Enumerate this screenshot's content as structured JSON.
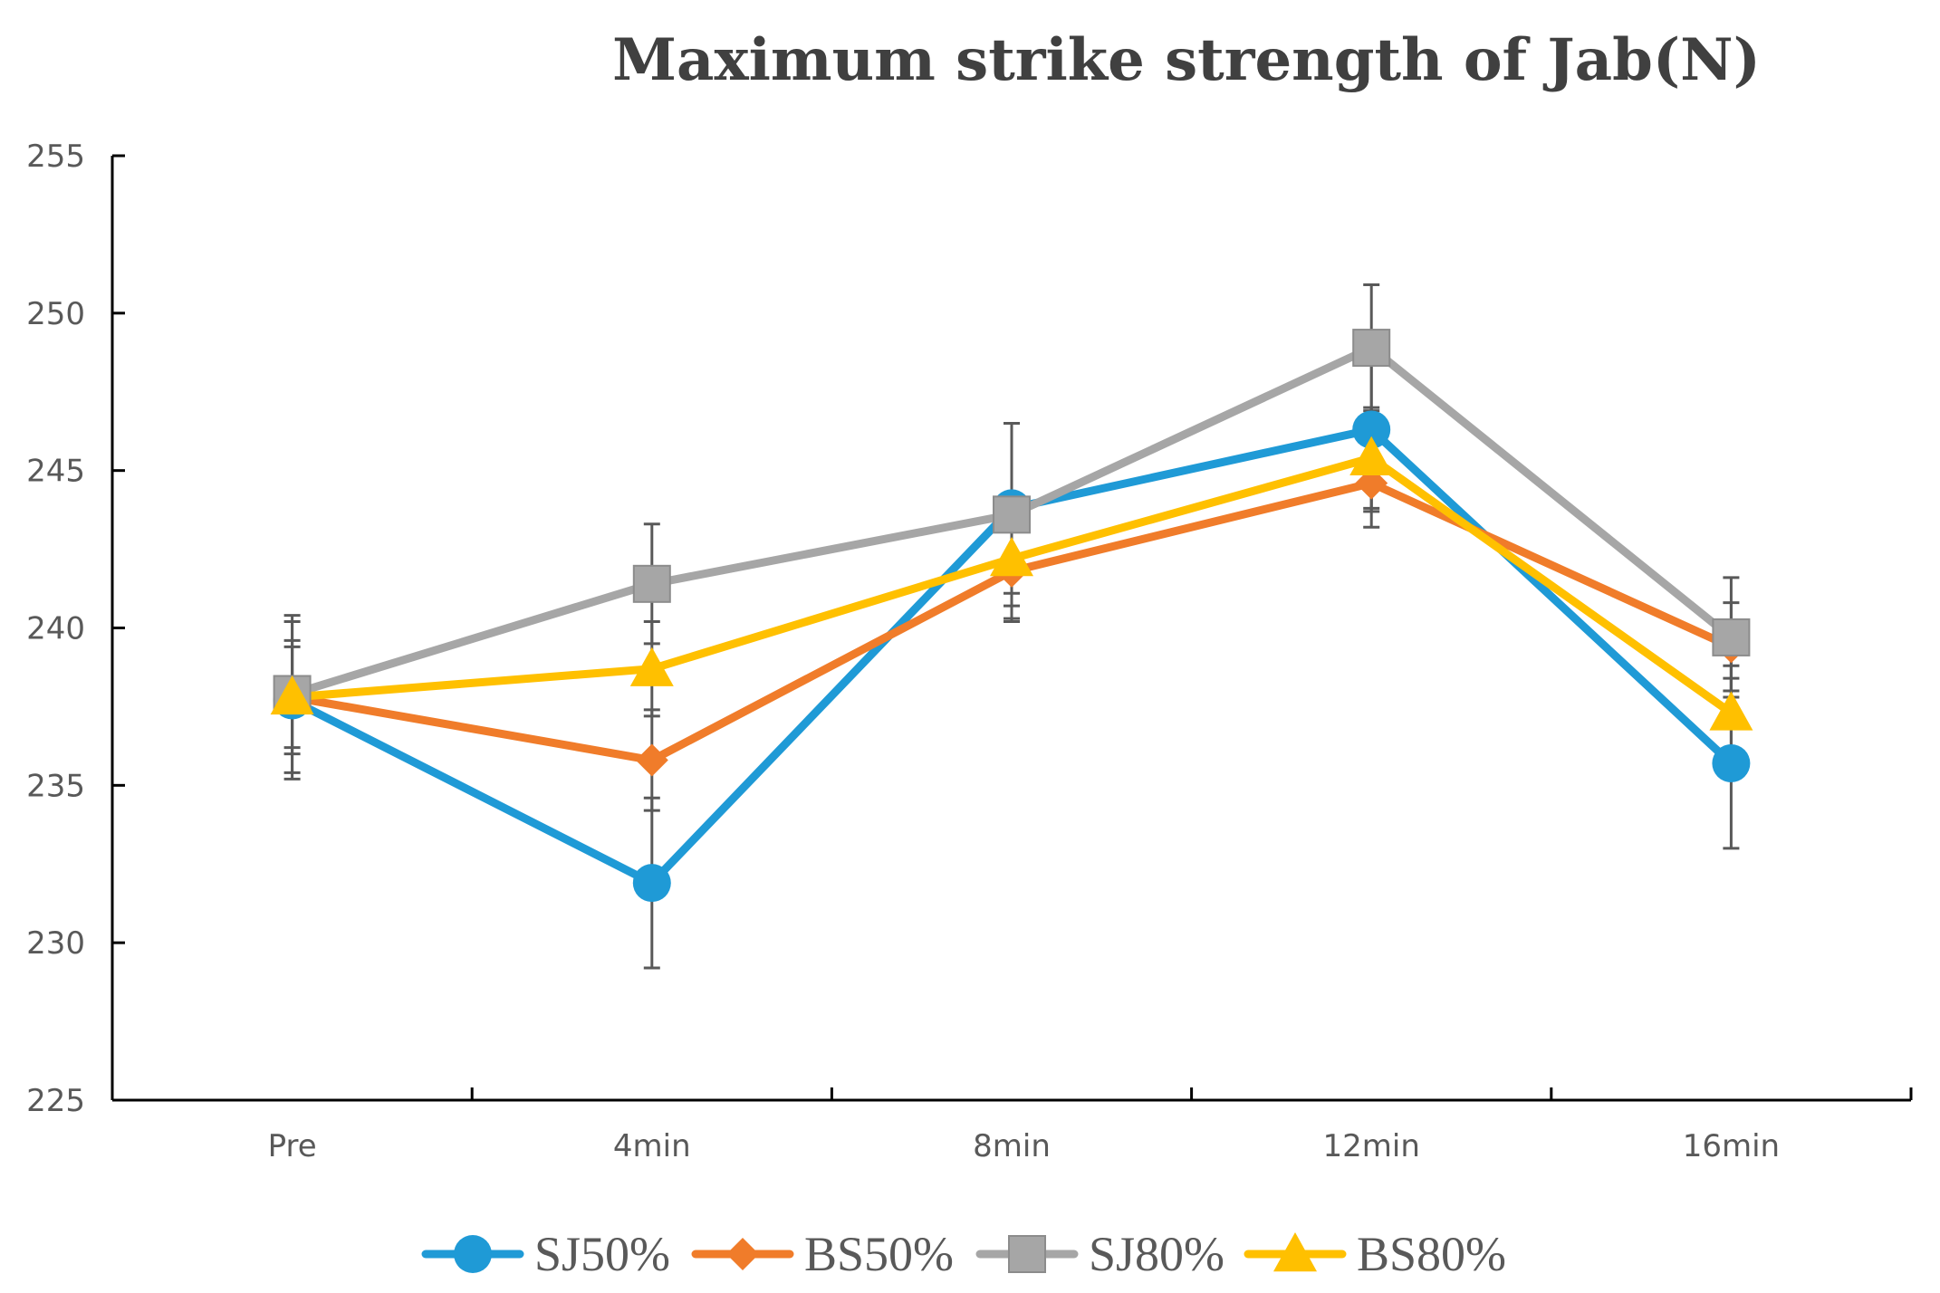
{
  "chart_data": {
    "type": "line",
    "title": "Maximum strike strength of Jab(N)",
    "xlabel": "",
    "ylabel": "",
    "categories": [
      "Pre",
      "4min",
      "8min",
      "12min",
      "16min"
    ],
    "ylim": [
      225,
      255
    ],
    "y_ticks": [
      225,
      230,
      235,
      240,
      245,
      250,
      255
    ],
    "y_tick_labels": [
      "225",
      "230",
      "235",
      "240",
      "245",
      "250",
      "255"
    ],
    "legend_position": "bottom",
    "grid": false,
    "series": [
      {
        "name": "SJ50%",
        "color": "#1f9ad6",
        "marker": "circle",
        "values": [
          237.7,
          231.9,
          243.8,
          246.3,
          235.7
        ],
        "errors": [
          2.5,
          2.7,
          2.7,
          2.6,
          2.7
        ]
      },
      {
        "name": "BS50%",
        "color": "#f07c2a",
        "marker": "diamond",
        "values": [
          237.8,
          235.8,
          241.8,
          244.6,
          239.4
        ],
        "errors": [
          1.6,
          1.6,
          1.6,
          1.4,
          1.4
        ]
      },
      {
        "name": "SJ80%",
        "color": "#a6a6a6",
        "marker": "square",
        "values": [
          237.9,
          241.4,
          243.6,
          248.9,
          239.7
        ],
        "errors": [
          2.5,
          1.9,
          2.9,
          2.0,
          1.9
        ]
      },
      {
        "name": "BS80%",
        "color": "#ffc000",
        "marker": "triangle",
        "values": [
          237.8,
          238.7,
          242.2,
          245.4,
          237.3
        ],
        "errors": [
          1.8,
          1.5,
          1.9,
          1.6,
          1.5
        ]
      }
    ]
  }
}
